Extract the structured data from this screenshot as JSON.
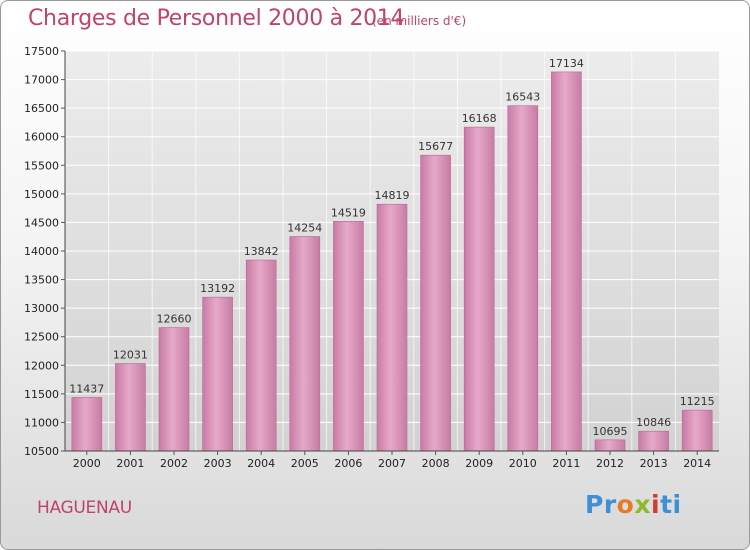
{
  "header": {
    "title": "Charges de Personnel 2000 à 2014",
    "subtitle": "(en milliers d'€)"
  },
  "footer": {
    "city": "HAGUENAU",
    "logo": [
      "Pr",
      "o",
      "x",
      "i",
      "ti"
    ]
  },
  "colors": {
    "bar": "#d98fb6",
    "text_accent": "#c0446a"
  },
  "chart_data": {
    "type": "bar",
    "title": "Charges de Personnel 2000 à 2014",
    "subtitle": "(en milliers d'€)",
    "categories": [
      "2000",
      "2001",
      "2002",
      "2003",
      "2004",
      "2005",
      "2006",
      "2007",
      "2008",
      "2009",
      "2010",
      "2011",
      "2012",
      "2013",
      "2014"
    ],
    "values": [
      11437,
      12031,
      12660,
      13192,
      13842,
      14254,
      14519,
      14819,
      15677,
      16168,
      16543,
      17134,
      10695,
      10846,
      11215
    ],
    "ylim": [
      10500,
      17500
    ],
    "yticks": [
      10500,
      11000,
      11500,
      12000,
      12500,
      13000,
      13500,
      14000,
      14500,
      15000,
      15500,
      16000,
      16500,
      17000,
      17500
    ],
    "grid": true,
    "legend": "none"
  }
}
